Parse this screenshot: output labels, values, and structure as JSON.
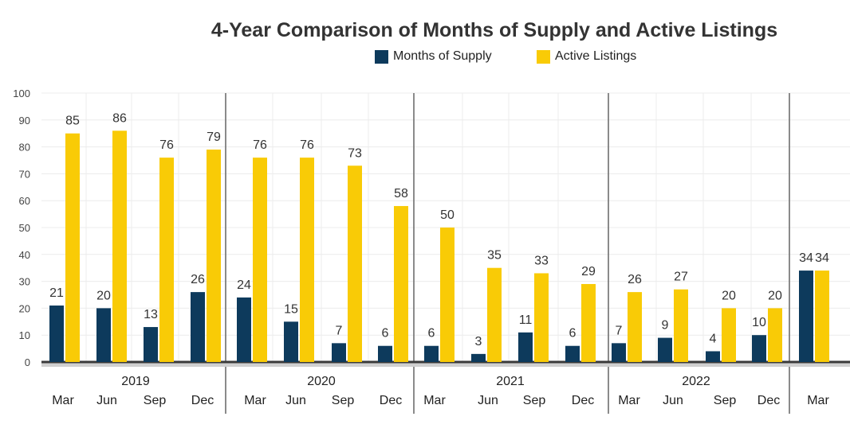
{
  "chart_data": {
    "type": "bar",
    "title": "4-Year Comparison of Months of Supply and Active Listings",
    "years": [
      "2019",
      "2020",
      "2021",
      "2022"
    ],
    "categories": [
      "Mar",
      "Jun",
      "Sep",
      "Dec",
      "Mar",
      "Jun",
      "Sep",
      "Dec",
      "Mar",
      "Jun",
      "Sep",
      "Dec",
      "Mar",
      "Jun",
      "Sep",
      "Dec",
      "Mar"
    ],
    "series": [
      {
        "name": "Months of Supply",
        "color": "#0d3a5c",
        "values": [
          21,
          20,
          13,
          26,
          24,
          15,
          7,
          6,
          6,
          3,
          11,
          6,
          7,
          9,
          4,
          10,
          34
        ]
      },
      {
        "name": "Active Listings",
        "color": "#f9cb06",
        "values": [
          85,
          86,
          76,
          79,
          76,
          76,
          73,
          58,
          50,
          35,
          33,
          29,
          26,
          27,
          20,
          20,
          34
        ]
      }
    ],
    "ylim": [
      0,
      100
    ],
    "yticks": [
      0,
      10,
      20,
      30,
      40,
      50,
      60,
      70,
      80,
      90,
      100
    ],
    "grid": true,
    "legend": "top"
  }
}
